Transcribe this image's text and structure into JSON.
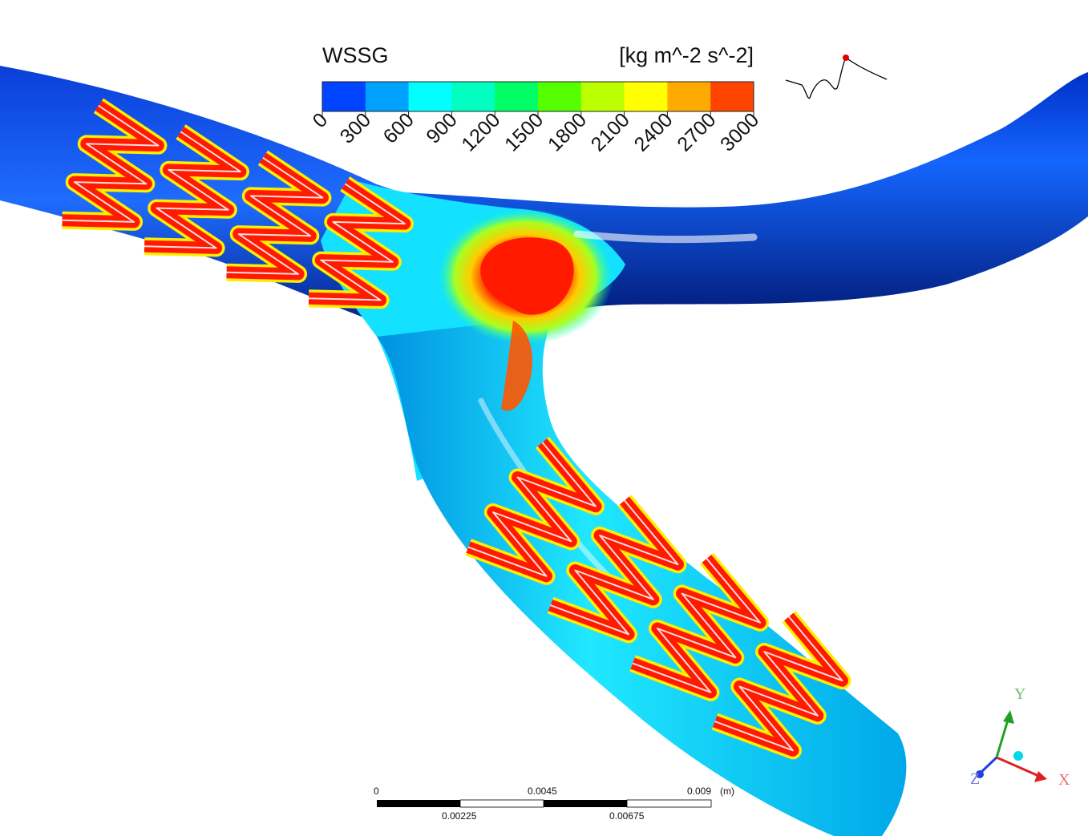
{
  "legend": {
    "title": "WSSG",
    "units": "[kg m^-2 s^-2]",
    "ticks": [
      "0",
      "300",
      "600",
      "900",
      "1200",
      "1500",
      "1800",
      "2100",
      "2400",
      "2700",
      "3000"
    ],
    "colors": [
      "#0044ff",
      "#00a2ff",
      "#00ffff",
      "#00ffc0",
      "#00ff66",
      "#55ff00",
      "#bbff00",
      "#ffff00",
      "#ffaa00",
      "#ff4400"
    ]
  },
  "scale_bar": {
    "top_labels": [
      "0",
      "0.0045",
      "0.009"
    ],
    "bottom_labels": [
      "0.00225",
      "0.00675"
    ],
    "unit": "(m)"
  },
  "triad": {
    "x": "X",
    "y": "Y",
    "z": "Z"
  },
  "colors": {
    "low": "#0033dd",
    "mid": "#00d8ff",
    "high": "#ff1a00",
    "triad_x": "#e02020",
    "triad_y": "#20a020",
    "triad_z": "#2040e0"
  }
}
